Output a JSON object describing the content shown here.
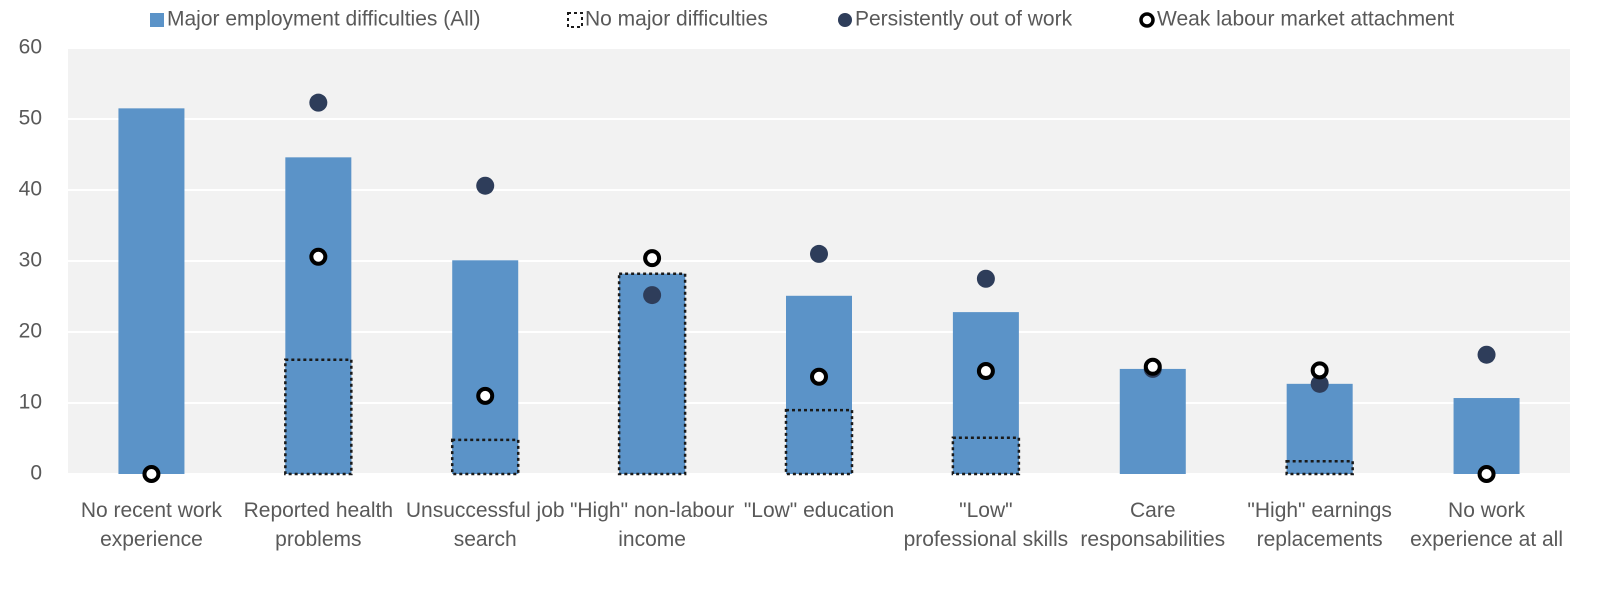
{
  "chart_data": {
    "type": "bar",
    "categories": [
      "No recent work experience",
      "Reported health problems",
      "Unsuccessful job search",
      "\"High\" non-labour income",
      "\"Low\" education",
      "\"Low\" professional skills",
      "Care responsabilities",
      "\"High\" earnings replacements",
      "No work experience at all"
    ],
    "series": [
      {
        "name": "Major employment difficulties (All)",
        "marker": "bar",
        "color": "#5b93c8",
        "values": [
          51.5,
          44.6,
          30.1,
          28.2,
          25.1,
          22.8,
          14.8,
          12.7,
          10.7
        ]
      },
      {
        "name": "No major difficulties",
        "marker": "dotted-bar",
        "color": "#5b93c8",
        "values": [
          null,
          16.1,
          4.8,
          28.2,
          9.0,
          5.1,
          null,
          1.8,
          null
        ]
      },
      {
        "name": "Persistently out of work",
        "marker": "dot",
        "color": "#2e3d5a",
        "values": [
          null,
          52.3,
          40.6,
          25.2,
          31.0,
          27.5,
          14.8,
          12.7,
          16.8
        ]
      },
      {
        "name": "Weak labour market attachment",
        "marker": "ring",
        "color": "#000000",
        "values": [
          0,
          30.6,
          11.0,
          30.4,
          13.7,
          14.5,
          15.1,
          14.6,
          0
        ]
      }
    ],
    "ylim": [
      0,
      60
    ],
    "yticks": [
      0,
      10,
      20,
      30,
      40,
      50,
      60
    ],
    "grid": true,
    "legend": "top"
  }
}
